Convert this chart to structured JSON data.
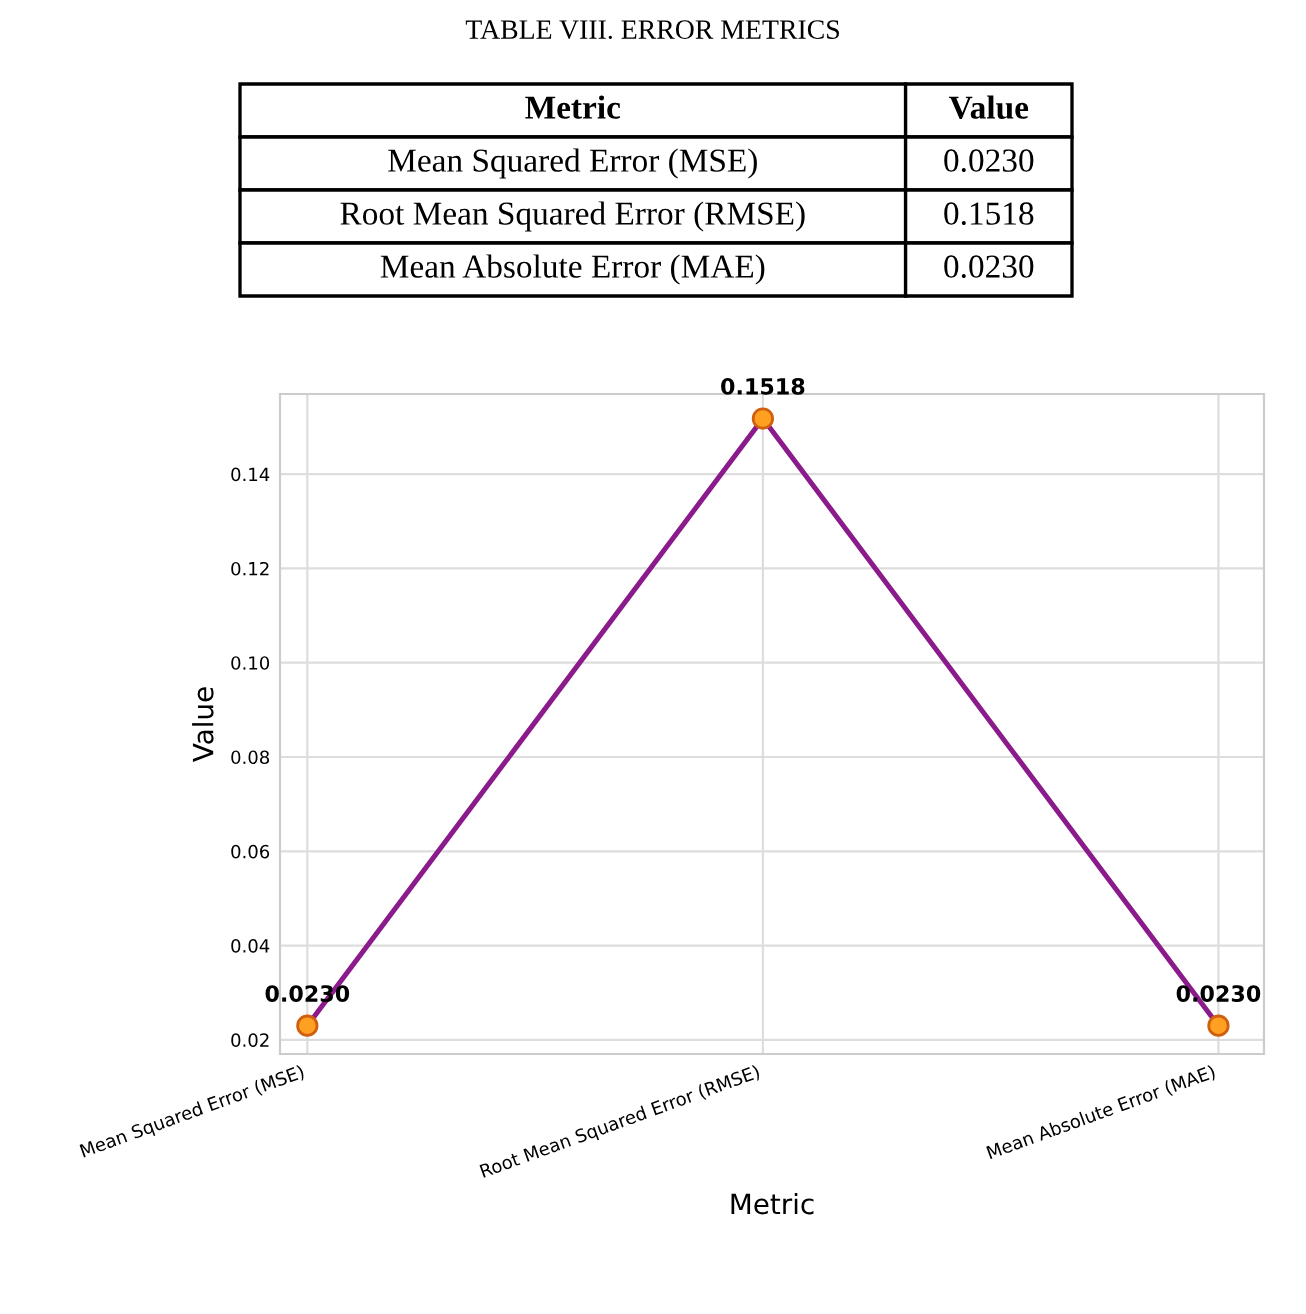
{
  "chart_data": {
    "type": "line",
    "title": "TABLE VIII. ERROR METRICS",
    "xlabel": "Metric",
    "ylabel": "Value",
    "categories": [
      "Mean Squared Error (MSE)",
      "Root Mean Squared Error (RMSE)",
      "Mean Absolute Error (MAE)"
    ],
    "series": [
      {
        "color": "#8b1a8b",
        "values": [
          0.023,
          0.1518,
          0.023
        ],
        "value_labels": [
          "0.0230",
          "0.1518",
          "0.0230"
        ]
      }
    ],
    "ylim": [
      0.017,
      0.157
    ],
    "yticks": [
      {
        "value": 0.02,
        "label": "0.02"
      },
      {
        "value": 0.04,
        "label": "0.04"
      },
      {
        "value": 0.06,
        "label": "0.06"
      },
      {
        "value": 0.08,
        "label": "0.08"
      },
      {
        "value": 0.1,
        "label": "0.10"
      },
      {
        "value": 0.12,
        "label": "0.12"
      },
      {
        "value": 0.14,
        "label": "0.14"
      }
    ],
    "grid": true,
    "marker": "circle",
    "line_style": "solid",
    "legend": false
  }
}
